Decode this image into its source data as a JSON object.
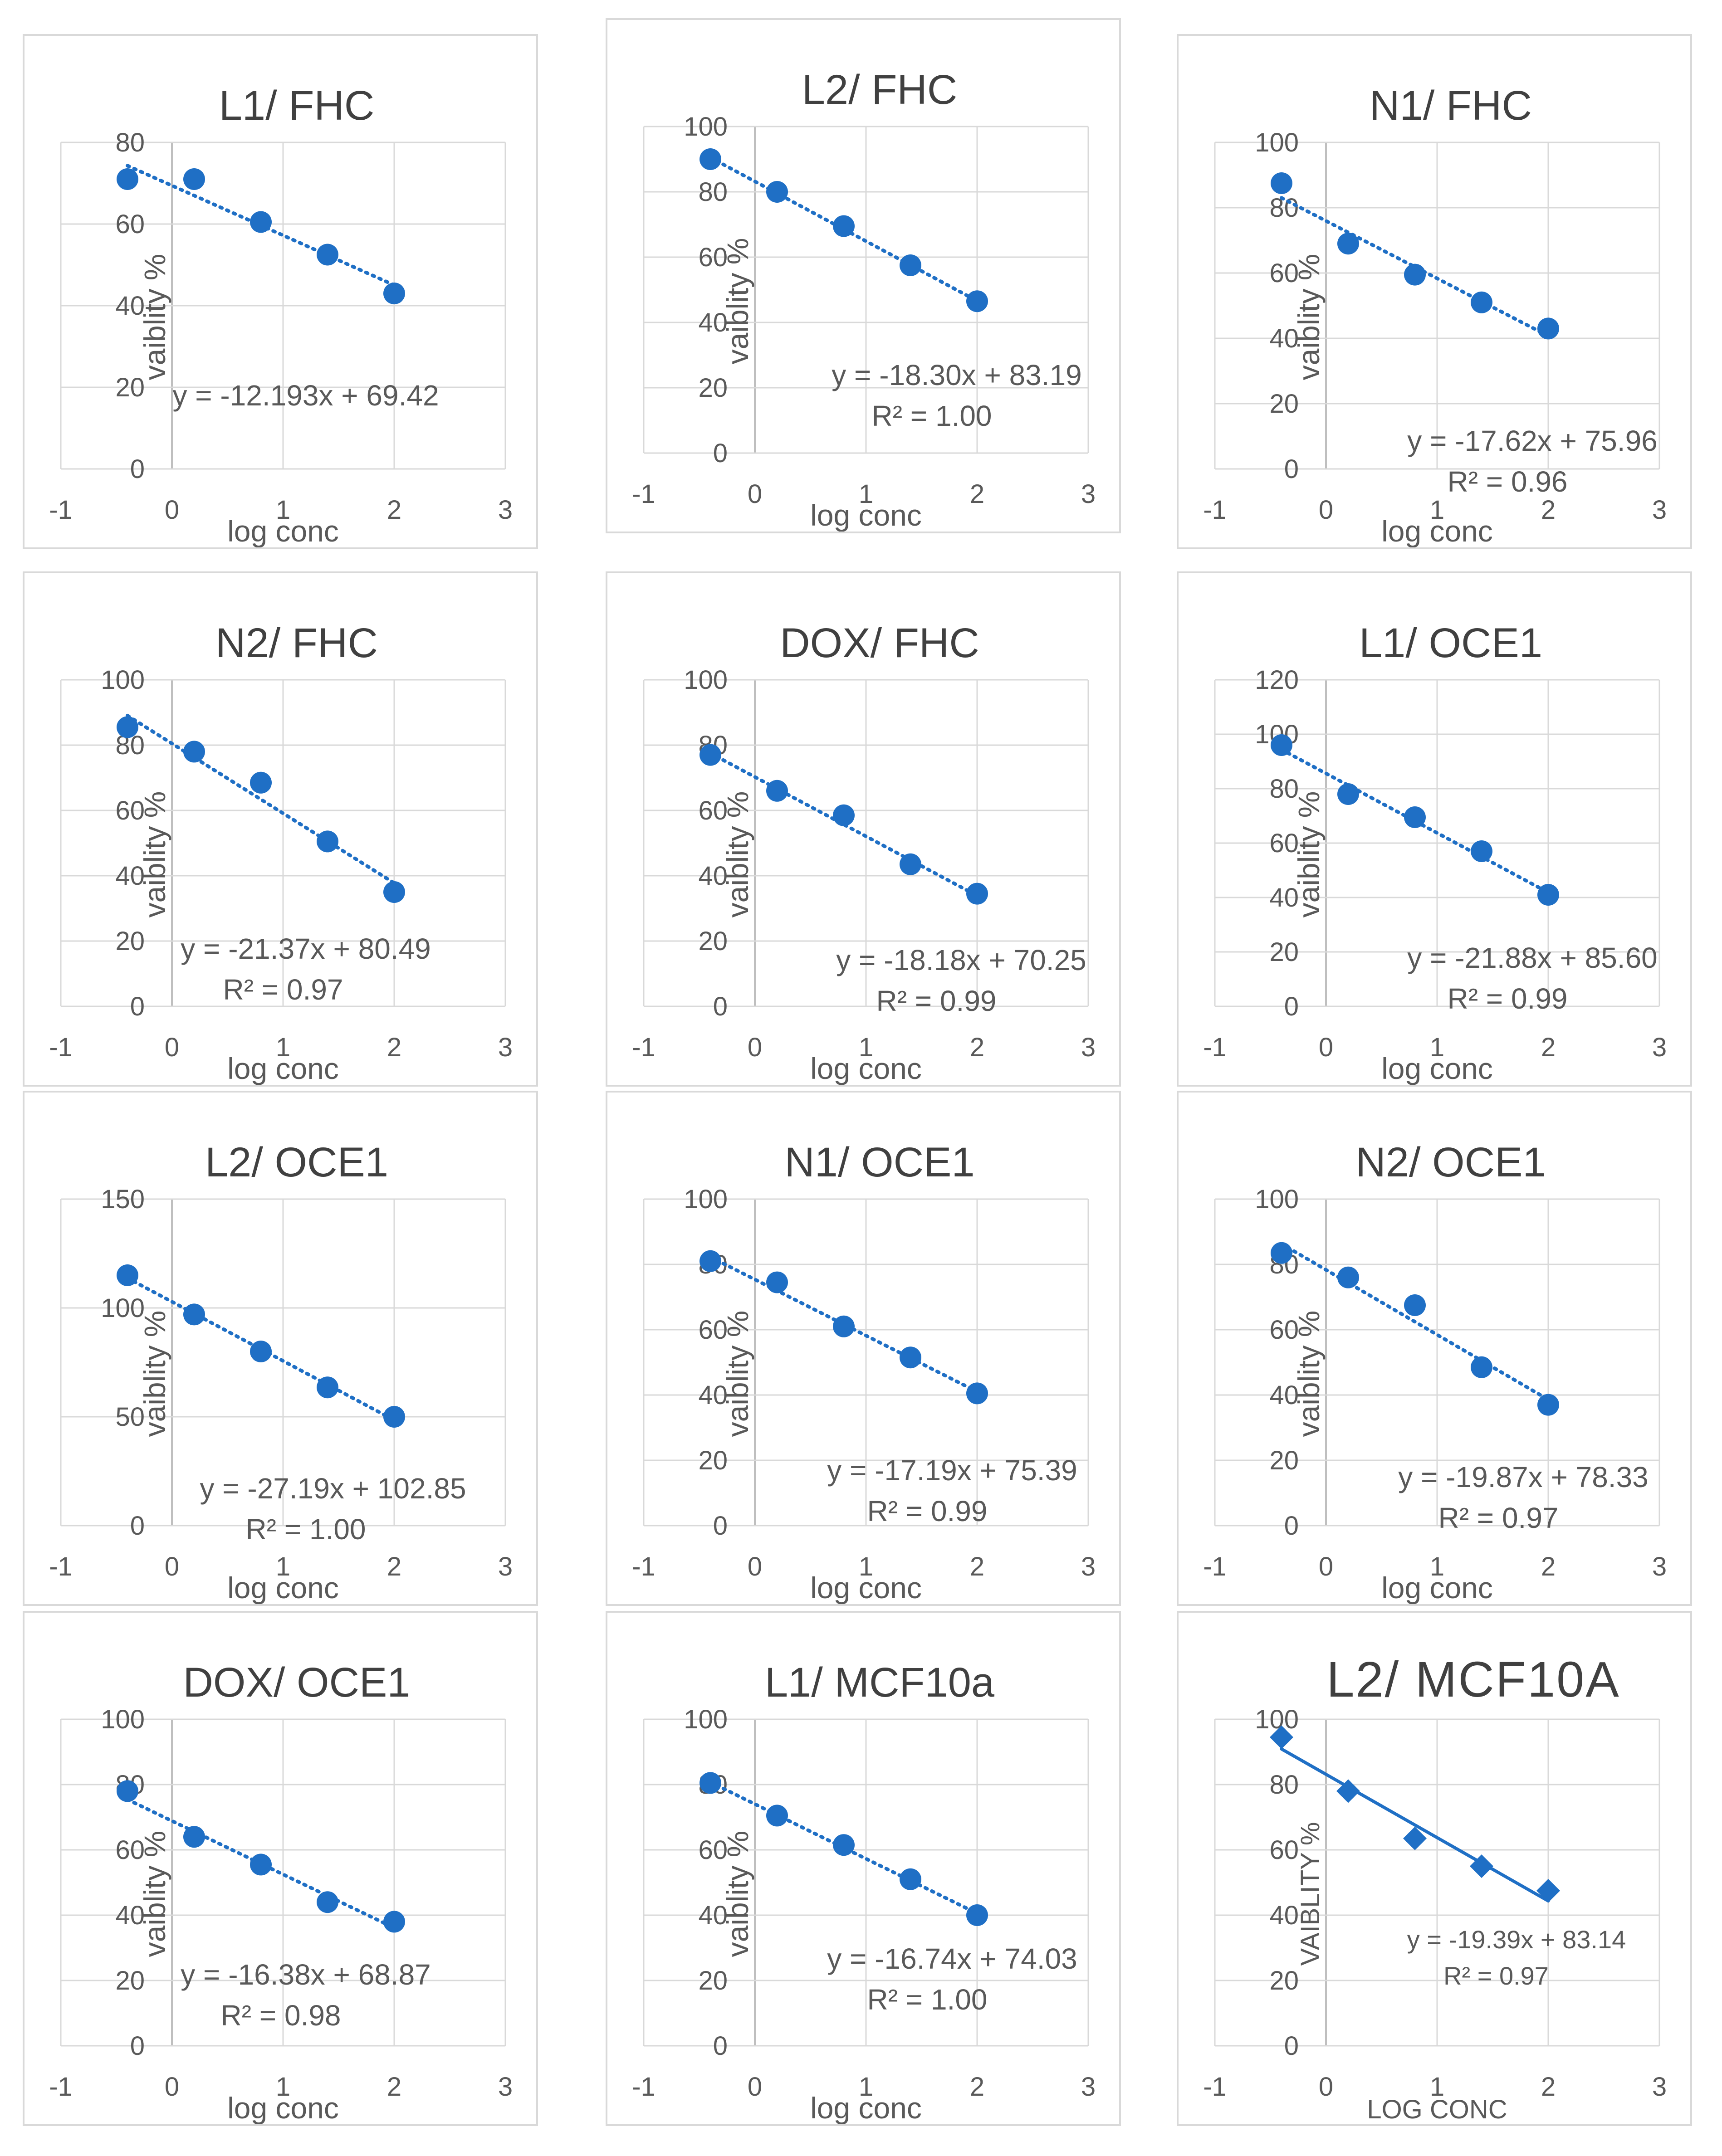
{
  "chart_data": [
    {
      "type": "scatter",
      "title": "L1/ FHC",
      "xlabel": "log conc",
      "ylabel": "vaiblity %",
      "x": [
        -0.4,
        0.2,
        0.8,
        1.4,
        2.0
      ],
      "y": [
        71,
        71,
        60.5,
        52.5,
        43
      ],
      "xlim": [
        -1,
        3
      ],
      "ylim": [
        0,
        80
      ],
      "yticks": [
        0,
        20,
        40,
        60,
        80
      ],
      "trendline": {
        "slope": -12.193,
        "intercept": 69.42,
        "style": "dotted"
      },
      "equation": "y = -12.193x + 69.42",
      "r2": ""
    },
    {
      "type": "scatter",
      "title": "L2/ FHC",
      "xlabel": "log conc",
      "ylabel": "vaiblity %",
      "x": [
        -0.4,
        0.2,
        0.8,
        1.4,
        2.0
      ],
      "y": [
        90,
        80,
        69.5,
        57.5,
        46.5
      ],
      "xlim": [
        -1,
        3
      ],
      "ylim": [
        0,
        100
      ],
      "yticks": [
        0,
        20,
        40,
        60,
        80,
        100
      ],
      "trendline": {
        "slope": -18.3,
        "intercept": 83.19,
        "style": "dotted"
      },
      "equation": "y = -18.30x + 83.19",
      "r2": "R² = 1.00"
    },
    {
      "type": "scatter",
      "title": "N1/ FHC",
      "xlabel": "log conc",
      "ylabel": "vaiblity %",
      "x": [
        -0.4,
        0.2,
        0.8,
        1.4,
        2.0
      ],
      "y": [
        87.5,
        69,
        59.5,
        51,
        43
      ],
      "xlim": [
        -1,
        3
      ],
      "ylim": [
        0,
        100
      ],
      "yticks": [
        0,
        20,
        40,
        60,
        80,
        100
      ],
      "trendline": {
        "slope": -17.62,
        "intercept": 75.96,
        "style": "dotted"
      },
      "equation": "y = -17.62x + 75.96",
      "r2": "R² = 0.96"
    },
    {
      "type": "scatter",
      "title": "N2/ FHC",
      "xlabel": "log conc",
      "ylabel": "vaiblity %",
      "x": [
        -0.4,
        0.2,
        0.8,
        1.4,
        2.0
      ],
      "y": [
        85.5,
        78,
        68.5,
        50.5,
        35
      ],
      "xlim": [
        -1,
        3
      ],
      "ylim": [
        0,
        100
      ],
      "yticks": [
        0,
        20,
        40,
        60,
        80,
        100
      ],
      "trendline": {
        "slope": -21.37,
        "intercept": 80.49,
        "style": "dotted"
      },
      "equation": "y = -21.37x + 80.49",
      "r2": "R² = 0.97"
    },
    {
      "type": "scatter",
      "title": "DOX/ FHC",
      "xlabel": "log conc",
      "ylabel": "vaiblity %",
      "x": [
        -0.4,
        0.2,
        0.8,
        1.4,
        2.0
      ],
      "y": [
        77,
        66,
        58.5,
        43.5,
        34.5
      ],
      "xlim": [
        -1,
        3
      ],
      "ylim": [
        0,
        100
      ],
      "yticks": [
        0,
        20,
        40,
        60,
        80,
        100
      ],
      "trendline": {
        "slope": -18.18,
        "intercept": 70.25,
        "style": "dotted"
      },
      "equation": "y = -18.18x + 70.25",
      "r2": "R² = 0.99"
    },
    {
      "type": "scatter",
      "title": "L1/ OCE1",
      "xlabel": "log conc",
      "ylabel": "vaiblity %",
      "x": [
        -0.4,
        0.2,
        0.8,
        1.4,
        2.0
      ],
      "y": [
        96,
        78,
        69.5,
        57,
        41
      ],
      "xlim": [
        -1,
        3
      ],
      "ylim": [
        0,
        120
      ],
      "yticks": [
        0,
        20,
        40,
        60,
        80,
        100,
        120
      ],
      "trendline": {
        "slope": -21.88,
        "intercept": 85.6,
        "style": "dotted"
      },
      "equation": "y = -21.88x + 85.60",
      "r2": "R² = 0.99"
    },
    {
      "type": "scatter",
      "title": "L2/ OCE1",
      "xlabel": "log conc",
      "ylabel": "vaiblity %",
      "x": [
        -0.4,
        0.2,
        0.8,
        1.4,
        2.0
      ],
      "y": [
        115,
        97,
        80,
        63.5,
        50
      ],
      "xlim": [
        -1,
        3
      ],
      "ylim": [
        0,
        150
      ],
      "yticks": [
        0,
        50,
        100,
        150
      ],
      "trendline": {
        "slope": -27.19,
        "intercept": 102.85,
        "style": "dotted"
      },
      "equation": "y = -27.19x + 102.85",
      "r2": "R² = 1.00"
    },
    {
      "type": "scatter",
      "title": "N1/ OCE1",
      "xlabel": "log conc",
      "ylabel": "vaiblity %",
      "x": [
        -0.4,
        0.2,
        0.8,
        1.4,
        2.0
      ],
      "y": [
        81,
        74.5,
        61,
        51.5,
        40.5
      ],
      "xlim": [
        -1,
        3
      ],
      "ylim": [
        0,
        100
      ],
      "yticks": [
        0,
        20,
        40,
        60,
        80,
        100
      ],
      "trendline": {
        "slope": -17.19,
        "intercept": 75.39,
        "style": "dotted"
      },
      "equation": "y = -17.19x + 75.39",
      "r2": "R² = 0.99"
    },
    {
      "type": "scatter",
      "title": "N2/ OCE1",
      "xlabel": "log conc",
      "ylabel": "vaiblity %",
      "x": [
        -0.4,
        0.2,
        0.8,
        1.4,
        2.0
      ],
      "y": [
        83.5,
        76,
        67.5,
        48.5,
        37
      ],
      "xlim": [
        -1,
        3
      ],
      "ylim": [
        0,
        100
      ],
      "yticks": [
        0,
        20,
        40,
        60,
        80,
        100
      ],
      "trendline": {
        "slope": -19.87,
        "intercept": 78.33,
        "style": "dotted"
      },
      "equation": "y = -19.87x + 78.33",
      "r2": "R² = 0.97"
    },
    {
      "type": "scatter",
      "title": "DOX/ OCE1",
      "xlabel": "log conc",
      "ylabel": "vaiblity %",
      "x": [
        -0.4,
        0.2,
        0.8,
        1.4,
        2.0
      ],
      "y": [
        78,
        64,
        55.5,
        44,
        38
      ],
      "xlim": [
        -1,
        3
      ],
      "ylim": [
        0,
        100
      ],
      "yticks": [
        0,
        20,
        40,
        60,
        80,
        100
      ],
      "trendline": {
        "slope": -16.38,
        "intercept": 68.87,
        "style": "dotted"
      },
      "equation": "y = -16.38x + 68.87",
      "r2": "R² = 0.98"
    },
    {
      "type": "scatter",
      "title": "L1/ MCF10a",
      "xlabel": "log conc",
      "ylabel": "vaiblity %",
      "x": [
        -0.4,
        0.2,
        0.8,
        1.4,
        2.0
      ],
      "y": [
        80.5,
        70.5,
        61.5,
        51,
        40
      ],
      "xlim": [
        -1,
        3
      ],
      "ylim": [
        0,
        100
      ],
      "yticks": [
        0,
        20,
        40,
        60,
        80,
        100
      ],
      "trendline": {
        "slope": -16.74,
        "intercept": 74.03,
        "style": "dotted"
      },
      "equation": "y = -16.74x + 74.03",
      "r2": "R² = 1.00"
    },
    {
      "type": "scatter",
      "title": "L2/ MCF10A",
      "xlabel": "LOG CONC",
      "ylabel": "VAIBLITY %",
      "x": [
        -0.4,
        0.2,
        0.8,
        1.4,
        2.0
      ],
      "y": [
        94.5,
        78,
        63.5,
        55,
        47.5
      ],
      "xlim": [
        -1,
        3
      ],
      "ylim": [
        0,
        100
      ],
      "yticks": [
        0,
        20,
        40,
        60,
        80,
        100
      ],
      "trendline": {
        "slope": -19.39,
        "intercept": 83.14,
        "style": "solid"
      },
      "marker": "diamond",
      "title_style": "large",
      "equation": "y = -19.39x + 83.14",
      "r2": "R² = 0.97"
    }
  ],
  "colors": {
    "marker": "#1f6fc5",
    "grid": "#d9d9d9",
    "text": "#595959",
    "title": "#404040"
  }
}
